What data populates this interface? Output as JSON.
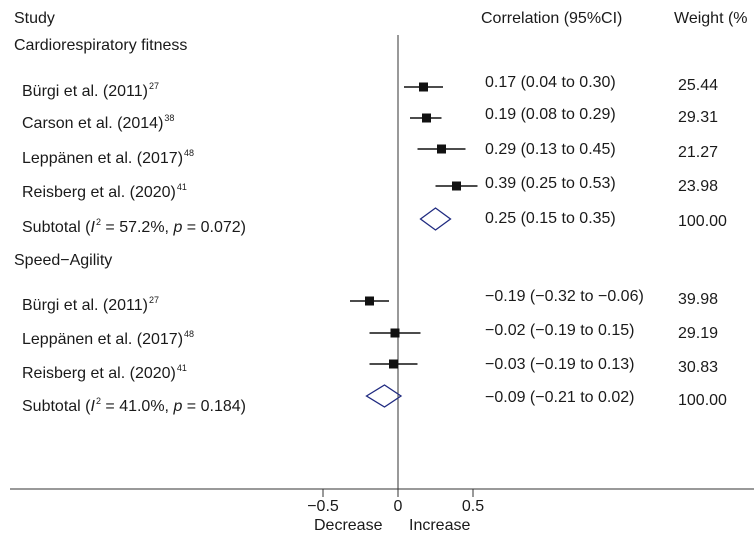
{
  "header": {
    "study": "Study",
    "estimate": "Correlation (95%CI)",
    "weight": "Weight (%"
  },
  "chart_data": {
    "type": "forest",
    "xlim": [
      -0.5,
      0.5
    ],
    "xticks": [
      "−0.5",
      "0",
      "0.5"
    ],
    "xtick_values": [
      -0.5,
      0,
      0.5
    ],
    "xlabel_left": "Decrease",
    "xlabel_right": "Increase",
    "marker_color": "#111111",
    "diamond_color": "#1f2a80",
    "groups": [
      {
        "name": "Cardiorespiratory fitness",
        "studies": [
          {
            "label": "Bürgi et al. (2011)",
            "ref": "27",
            "est": 0.17,
            "lo": 0.04,
            "hi": 0.3,
            "ci_text": "0.17 (0.04 to 0.30)",
            "weight": "25.44"
          },
          {
            "label": "Carson et al. (2014)",
            "ref": "38",
            "est": 0.19,
            "lo": 0.08,
            "hi": 0.29,
            "ci_text": "0.19 (0.08 to 0.29)",
            "weight": "29.31"
          },
          {
            "label": "Leppänen et al. (2017)",
            "ref": "48",
            "est": 0.29,
            "lo": 0.13,
            "hi": 0.45,
            "ci_text": "0.29 (0.13 to 0.45)",
            "weight": "21.27"
          },
          {
            "label": "Reisberg et al. (2020)",
            "ref": "41",
            "est": 0.39,
            "lo": 0.25,
            "hi": 0.53,
            "ci_text": "0.39 (0.25 to 0.53)",
            "weight": "23.98"
          }
        ],
        "subtotal": {
          "prefix": "Subtotal  (",
          "i_letter": "I",
          "i_sup": "2",
          "mid": " = 57.2%, ",
          "p_letter": "p",
          "rest": " = 0.072)",
          "est": 0.25,
          "lo": 0.15,
          "hi": 0.35,
          "ci_text": "0.25 (0.15 to 0.35)",
          "weight": "100.00"
        }
      },
      {
        "name": "Speed−Agility",
        "studies": [
          {
            "label": "Bürgi et al. (2011)",
            "ref": "27",
            "est": -0.19,
            "lo": -0.32,
            "hi": -0.06,
            "ci_text": "−0.19 (−0.32 to −0.06)",
            "weight": "39.98"
          },
          {
            "label": "Leppänen et al. (2017)",
            "ref": "48",
            "est": -0.02,
            "lo": -0.19,
            "hi": 0.15,
            "ci_text": "−0.02 (−0.19 to 0.15)",
            "weight": "29.19"
          },
          {
            "label": "Reisberg et al. (2020)",
            "ref": "41",
            "est": -0.03,
            "lo": -0.19,
            "hi": 0.13,
            "ci_text": "−0.03 (−0.19 to 0.13)",
            "weight": "30.83"
          }
        ],
        "subtotal": {
          "prefix": "Subtotal  (",
          "i_letter": "I",
          "i_sup": "2",
          "mid": " = 41.0%, ",
          "p_letter": "p",
          "rest": " = 0.184)",
          "est": -0.09,
          "lo": -0.21,
          "hi": 0.02,
          "ci_text": "−0.09 (−0.21 to 0.02)",
          "weight": "100.00"
        }
      }
    ]
  }
}
